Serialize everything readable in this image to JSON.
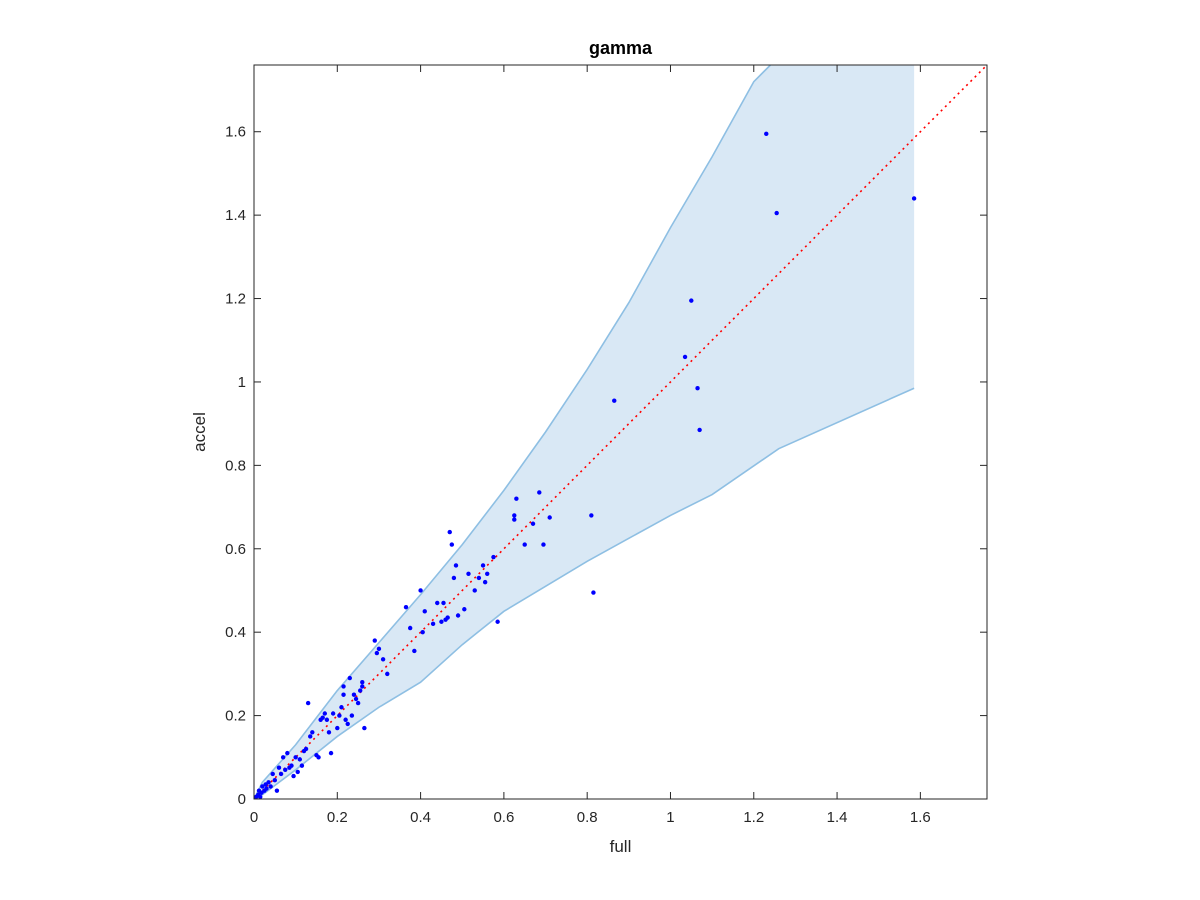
{
  "chart_data": {
    "type": "scatter",
    "title": "gamma",
    "xlabel": "full",
    "ylabel": "accel",
    "xlim": [
      0,
      1.76
    ],
    "ylim": [
      0,
      1.76
    ],
    "grid": false,
    "legend": "none",
    "x_ticks": [
      0,
      0.2,
      0.4,
      0.6,
      0.8,
      1,
      1.2,
      1.4,
      1.6
    ],
    "x_tick_labels": [
      "0",
      "0.2",
      "0.4",
      "0.6",
      "0.8",
      "1",
      "1.2",
      "1.4",
      "1.6"
    ],
    "y_ticks": [
      0,
      0.2,
      0.4,
      0.6,
      0.8,
      1,
      1.2,
      1.4,
      1.6
    ],
    "y_tick_labels": [
      "0",
      "0.2",
      "0.4",
      "0.6",
      "0.8",
      "1",
      "1.2",
      "1.4",
      "1.6"
    ],
    "colors": {
      "points": "#0000ff",
      "band_fill": "#d9e8f5",
      "band_edge": "#8ebfe3",
      "diagonal": "#ff0000",
      "axes": "#262626"
    },
    "band": {
      "upper": [
        [
          0,
          0
        ],
        [
          0.02,
          0.04
        ],
        [
          0.1,
          0.13
        ],
        [
          0.2,
          0.26
        ],
        [
          0.3,
          0.375
        ],
        [
          0.4,
          0.49
        ],
        [
          0.5,
          0.61
        ],
        [
          0.6,
          0.74
        ],
        [
          0.7,
          0.88
        ],
        [
          0.8,
          1.03
        ],
        [
          0.9,
          1.19
        ],
        [
          1.0,
          1.37
        ],
        [
          1.1,
          1.54
        ],
        [
          1.2,
          1.72
        ],
        [
          1.24,
          1.76
        ]
      ],
      "upper_right_x": 1.585,
      "lower": [
        [
          0,
          0
        ],
        [
          0.02,
          0.01
        ],
        [
          0.1,
          0.07
        ],
        [
          0.2,
          0.15
        ],
        [
          0.3,
          0.22
        ],
        [
          0.4,
          0.28
        ],
        [
          0.5,
          0.37
        ],
        [
          0.6,
          0.45
        ],
        [
          0.7,
          0.51
        ],
        [
          0.8,
          0.57
        ],
        [
          0.9,
          0.625
        ],
        [
          1.0,
          0.68
        ],
        [
          1.1,
          0.73
        ],
        [
          1.26,
          0.84
        ],
        [
          1.585,
          0.985
        ]
      ]
    },
    "diagonal": [
      [
        0,
        0
      ],
      [
        1.76,
        1.76
      ]
    ],
    "series": [
      {
        "points": [
          [
            0.005,
            0.005
          ],
          [
            0.01,
            0.01
          ],
          [
            0.012,
            0.02
          ],
          [
            0.015,
            0.005
          ],
          [
            0.018,
            0.015
          ],
          [
            0.02,
            0.03
          ],
          [
            0.025,
            0.02
          ],
          [
            0.028,
            0.035
          ],
          [
            0.03,
            0.025
          ],
          [
            0.035,
            0.04
          ],
          [
            0.04,
            0.03
          ],
          [
            0.045,
            0.06
          ],
          [
            0.05,
            0.045
          ],
          [
            0.055,
            0.02
          ],
          [
            0.06,
            0.075
          ],
          [
            0.065,
            0.06
          ],
          [
            0.07,
            0.1
          ],
          [
            0.075,
            0.07
          ],
          [
            0.08,
            0.11
          ],
          [
            0.085,
            0.075
          ],
          [
            0.09,
            0.08
          ],
          [
            0.095,
            0.055
          ],
          [
            0.1,
            0.1
          ],
          [
            0.105,
            0.065
          ],
          [
            0.11,
            0.095
          ],
          [
            0.115,
            0.08
          ],
          [
            0.12,
            0.115
          ],
          [
            0.125,
            0.12
          ],
          [
            0.13,
            0.23
          ],
          [
            0.135,
            0.15
          ],
          [
            0.14,
            0.16
          ],
          [
            0.15,
            0.105
          ],
          [
            0.155,
            0.1
          ],
          [
            0.16,
            0.19
          ],
          [
            0.165,
            0.195
          ],
          [
            0.17,
            0.205
          ],
          [
            0.175,
            0.19
          ],
          [
            0.18,
            0.16
          ],
          [
            0.185,
            0.11
          ],
          [
            0.19,
            0.205
          ],
          [
            0.2,
            0.17
          ],
          [
            0.205,
            0.2
          ],
          [
            0.21,
            0.22
          ],
          [
            0.215,
            0.25
          ],
          [
            0.215,
            0.27
          ],
          [
            0.22,
            0.19
          ],
          [
            0.225,
            0.18
          ],
          [
            0.23,
            0.29
          ],
          [
            0.235,
            0.2
          ],
          [
            0.24,
            0.25
          ],
          [
            0.245,
            0.24
          ],
          [
            0.25,
            0.23
          ],
          [
            0.255,
            0.26
          ],
          [
            0.26,
            0.27
          ],
          [
            0.26,
            0.28
          ],
          [
            0.265,
            0.17
          ],
          [
            0.29,
            0.38
          ],
          [
            0.295,
            0.35
          ],
          [
            0.3,
            0.36
          ],
          [
            0.31,
            0.335
          ],
          [
            0.32,
            0.3
          ],
          [
            0.365,
            0.46
          ],
          [
            0.375,
            0.41
          ],
          [
            0.385,
            0.355
          ],
          [
            0.4,
            0.5
          ],
          [
            0.405,
            0.4
          ],
          [
            0.41,
            0.45
          ],
          [
            0.43,
            0.42
          ],
          [
            0.44,
            0.47
          ],
          [
            0.45,
            0.425
          ],
          [
            0.455,
            0.47
          ],
          [
            0.46,
            0.43
          ],
          [
            0.465,
            0.435
          ],
          [
            0.47,
            0.64
          ],
          [
            0.475,
            0.61
          ],
          [
            0.48,
            0.53
          ],
          [
            0.485,
            0.56
          ],
          [
            0.49,
            0.44
          ],
          [
            0.505,
            0.455
          ],
          [
            0.515,
            0.54
          ],
          [
            0.53,
            0.5
          ],
          [
            0.54,
            0.53
          ],
          [
            0.55,
            0.56
          ],
          [
            0.555,
            0.52
          ],
          [
            0.56,
            0.54
          ],
          [
            0.575,
            0.58
          ],
          [
            0.585,
            0.425
          ],
          [
            0.625,
            0.68
          ],
          [
            0.625,
            0.67
          ],
          [
            0.63,
            0.72
          ],
          [
            0.65,
            0.61
          ],
          [
            0.67,
            0.66
          ],
          [
            0.685,
            0.735
          ],
          [
            0.695,
            0.61
          ],
          [
            0.71,
            0.675
          ],
          [
            0.81,
            0.68
          ],
          [
            0.815,
            0.495
          ],
          [
            0.865,
            0.955
          ],
          [
            1.035,
            1.06
          ],
          [
            1.05,
            1.195
          ],
          [
            1.065,
            0.985
          ],
          [
            1.07,
            0.885
          ],
          [
            1.23,
            1.595
          ],
          [
            1.255,
            1.405
          ],
          [
            1.585,
            1.44
          ]
        ]
      }
    ]
  }
}
